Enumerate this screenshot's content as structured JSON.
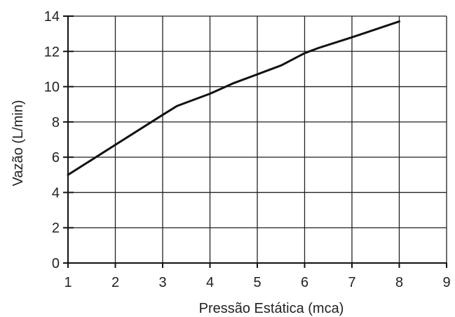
{
  "chart_data": {
    "type": "line",
    "xlabel": "Pressão Estática (mca)",
    "ylabel": "Vazão (L/min)",
    "xlim": [
      1,
      9
    ],
    "ylim": [
      0,
      14
    ],
    "x_ticks": [
      1,
      2,
      3,
      4,
      5,
      6,
      7,
      8,
      9
    ],
    "y_ticks": [
      0,
      2,
      4,
      6,
      8,
      10,
      12,
      14
    ],
    "grid": true,
    "series": [
      {
        "x": [
          1,
          2,
          3,
          3.3,
          4,
          4.5,
          5,
          5.5,
          6,
          6.3,
          7,
          8
        ],
        "y": [
          5.0,
          6.7,
          8.4,
          8.9,
          9.6,
          10.2,
          10.7,
          11.2,
          11.9,
          12.2,
          12.8,
          13.7
        ]
      }
    ],
    "line_color": "#111111",
    "grid_color": "#222222"
  }
}
